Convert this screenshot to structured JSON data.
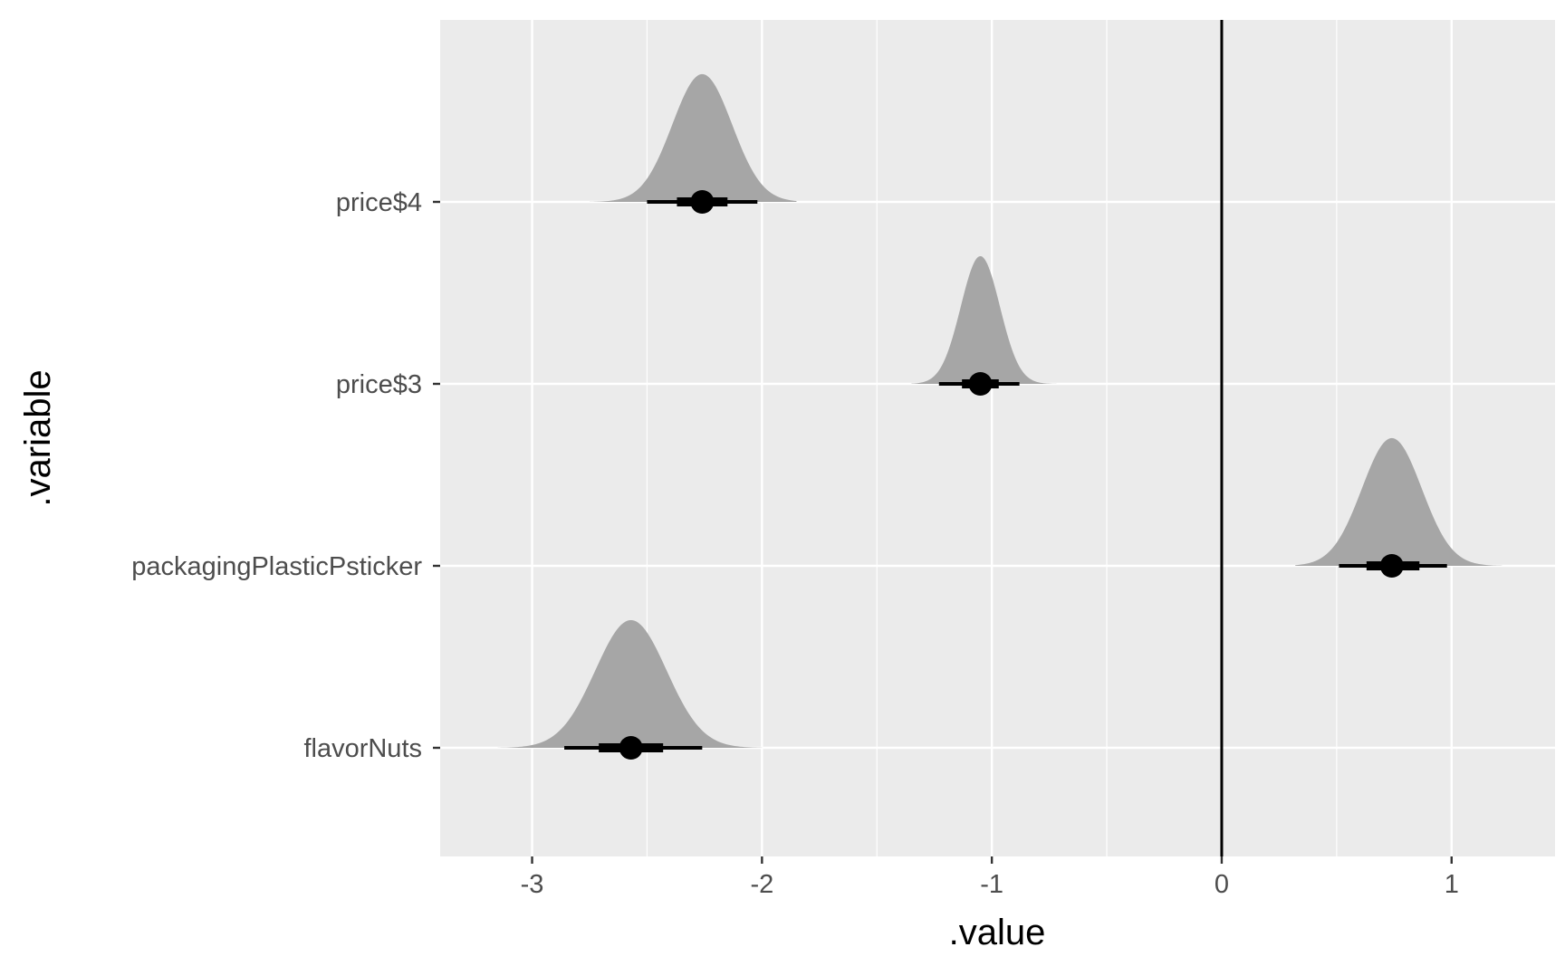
{
  "chart_data": {
    "type": "halfeye",
    "title": "",
    "xlabel": ".value",
    "ylabel": ".variable",
    "xlim": [
      -3.4,
      1.45
    ],
    "x_ticks": [
      -3,
      -2,
      -1,
      0,
      1
    ],
    "x_tick_labels": [
      "-3",
      "-2",
      "-1",
      "0",
      "1"
    ],
    "reference_line_x": 0,
    "grid": true,
    "categories": [
      "price$4",
      "price$3",
      "packagingPlasticPsticker",
      "flavorNuts"
    ],
    "series": [
      {
        "label": "price$4",
        "median": -2.26,
        "interval_66": [
          -2.37,
          -2.15
        ],
        "interval_95": [
          -2.5,
          -2.02
        ],
        "density_range": [
          -2.75,
          -1.85
        ],
        "density_sd": 0.13
      },
      {
        "label": "price$3",
        "median": -1.05,
        "interval_66": [
          -1.13,
          -0.97
        ],
        "interval_95": [
          -1.23,
          -0.88
        ],
        "density_range": [
          -1.35,
          -0.7
        ],
        "density_sd": 0.085
      },
      {
        "label": "packagingPlasticPsticker",
        "median": 0.74,
        "interval_66": [
          0.63,
          0.86
        ],
        "interval_95": [
          0.51,
          0.98
        ],
        "density_range": [
          0.32,
          1.22
        ],
        "density_sd": 0.13
      },
      {
        "label": "flavorNuts",
        "median": -2.57,
        "interval_66": [
          -2.71,
          -2.43
        ],
        "interval_95": [
          -2.86,
          -2.26
        ],
        "density_range": [
          -3.15,
          -2.0
        ],
        "density_sd": 0.155
      }
    ]
  }
}
